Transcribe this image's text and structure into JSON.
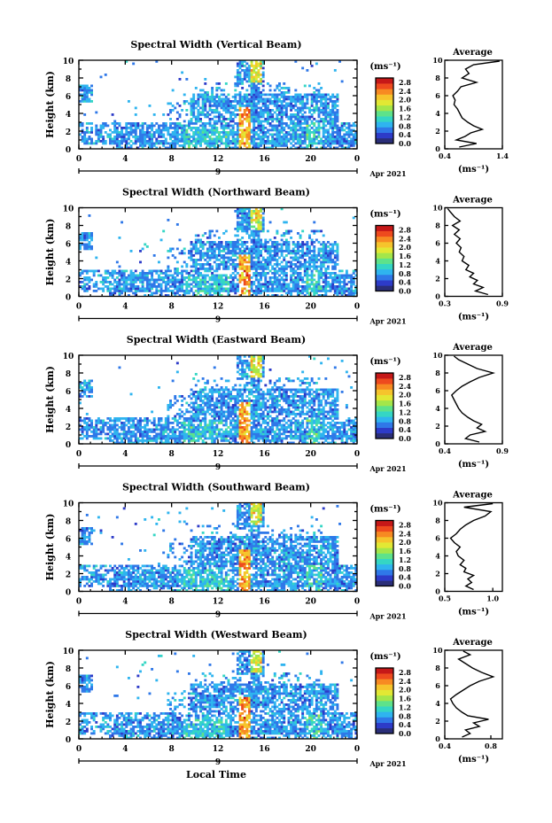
{
  "figure": {
    "x_axis_title": "Local Time",
    "date_label": "Apr 2021",
    "date_marker": "9",
    "y_axis_title": "Height (km)",
    "colorbar_unit": "(ms⁻¹)",
    "avg_title": "Average",
    "avg_unit": "(ms⁻¹)"
  },
  "colors": {
    "colormap": [
      "#2a2e78",
      "#2d3bc8",
      "#2f78e8",
      "#2fb4ef",
      "#35d6c4",
      "#5ee28a",
      "#a4e64a",
      "#e2e834",
      "#f6c42c",
      "#f78a22",
      "#ee4a1e",
      "#c61818"
    ],
    "axis": "#000000",
    "background": "#ffffff"
  },
  "chart_data": [
    {
      "type": "heatmap",
      "title": "Spectral Width (Vertical Beam)",
      "xlabel": "Local Time",
      "ylabel": "Height (km)",
      "xlim": [
        0,
        24
      ],
      "ylim": [
        0,
        10
      ],
      "xticks": [
        "0",
        "4",
        "8",
        "12",
        "16",
        "20",
        "0"
      ],
      "yticks": [
        "0",
        "2",
        "4",
        "6",
        "8",
        "10"
      ],
      "colorbar": {
        "unit": "(ms⁻¹)",
        "range": [
          0,
          3.0
        ],
        "ticks": [
          "0.0",
          "0.4",
          "0.8",
          "1.2",
          "1.6",
          "2.0",
          "2.4",
          "2.8"
        ]
      },
      "average_profile": {
        "title": "Average",
        "xlabel": "(ms⁻¹)",
        "xlim": [
          0.4,
          1.4
        ],
        "xticks": [
          "0.4",
          "1.4"
        ],
        "yticks": [
          "0",
          "2",
          "4",
          "6",
          "8",
          "10"
        ],
        "height_km": [
          0.2,
          0.6,
          1.0,
          1.4,
          1.8,
          2.2,
          2.6,
          3.0,
          3.5,
          4.0,
          4.5,
          5.0,
          5.5,
          6.0,
          6.5,
          7.0,
          7.5,
          8.0,
          8.5,
          9.0,
          9.5,
          9.9
        ],
        "value": [
          0.65,
          0.95,
          0.6,
          0.75,
          0.85,
          1.05,
          0.9,
          0.8,
          0.7,
          0.66,
          0.62,
          0.56,
          0.58,
          0.54,
          0.62,
          0.68,
          0.95,
          0.7,
          0.82,
          0.76,
          0.9,
          1.35
        ]
      }
    },
    {
      "type": "heatmap",
      "title": "Spectral Width (Northward Beam)",
      "xlabel": "Local Time",
      "ylabel": "Height (km)",
      "xlim": [
        0,
        24
      ],
      "ylim": [
        0,
        10
      ],
      "xticks": [
        "0",
        "4",
        "8",
        "12",
        "16",
        "20",
        "0"
      ],
      "yticks": [
        "0",
        "2",
        "4",
        "6",
        "8",
        "10"
      ],
      "colorbar": {
        "unit": "(ms⁻¹)",
        "range": [
          0,
          3.0
        ],
        "ticks": [
          "0.0",
          "0.4",
          "0.8",
          "1.2",
          "1.6",
          "2.0",
          "2.4",
          "2.8"
        ]
      },
      "average_profile": {
        "title": "Average",
        "xlabel": "(ms⁻¹)",
        "xlim": [
          0.3,
          0.9
        ],
        "xticks": [
          "0.3",
          "0.9"
        ],
        "yticks": [
          "0",
          "2",
          "4",
          "6",
          "8",
          "10"
        ],
        "height_km": [
          0.2,
          0.6,
          1.0,
          1.4,
          1.8,
          2.2,
          2.6,
          3.0,
          3.5,
          4.0,
          4.5,
          5.0,
          5.5,
          6.0,
          6.5,
          7.0,
          7.5,
          8.0,
          8.5,
          9.0,
          9.5,
          9.9
        ],
        "value": [
          0.75,
          0.62,
          0.7,
          0.6,
          0.64,
          0.56,
          0.6,
          0.52,
          0.55,
          0.48,
          0.5,
          0.45,
          0.47,
          0.42,
          0.46,
          0.4,
          0.45,
          0.38,
          0.46,
          0.4,
          0.36,
          0.33
        ]
      }
    },
    {
      "type": "heatmap",
      "title": "Spectral Width (Eastward Beam)",
      "xlabel": "Local Time",
      "ylabel": "Height (km)",
      "xlim": [
        0,
        24
      ],
      "ylim": [
        0,
        10
      ],
      "xticks": [
        "0",
        "4",
        "8",
        "12",
        "16",
        "20",
        "0"
      ],
      "yticks": [
        "0",
        "2",
        "4",
        "6",
        "8",
        "10"
      ],
      "colorbar": {
        "unit": "(ms⁻¹)",
        "range": [
          0,
          3.0
        ],
        "ticks": [
          "0.0",
          "0.4",
          "0.8",
          "1.2",
          "1.6",
          "2.0",
          "2.4",
          "2.8"
        ]
      },
      "average_profile": {
        "title": "Average",
        "xlabel": "(ms⁻¹)",
        "xlim": [
          0.4,
          0.9
        ],
        "xticks": [
          "0.4",
          "0.9"
        ],
        "yticks": [
          "0",
          "2",
          "4",
          "6",
          "8",
          "10"
        ],
        "height_km": [
          0.2,
          0.6,
          1.0,
          1.4,
          1.8,
          2.2,
          2.6,
          3.0,
          3.5,
          4.0,
          4.5,
          5.0,
          5.5,
          6.0,
          6.5,
          7.0,
          7.5,
          8.0,
          8.5,
          9.0,
          9.5,
          9.9
        ],
        "value": [
          0.7,
          0.58,
          0.62,
          0.75,
          0.68,
          0.72,
          0.65,
          0.6,
          0.55,
          0.52,
          0.5,
          0.48,
          0.46,
          0.5,
          0.55,
          0.62,
          0.7,
          0.82,
          0.68,
          0.6,
          0.52,
          0.48
        ]
      }
    },
    {
      "type": "heatmap",
      "title": "Spectral Width (Southward Beam)",
      "xlabel": "Local Time",
      "ylabel": "Height (km)",
      "xlim": [
        0,
        24
      ],
      "ylim": [
        0,
        10
      ],
      "xticks": [
        "0",
        "4",
        "8",
        "12",
        "16",
        "20",
        "0"
      ],
      "yticks": [
        "0",
        "2",
        "4",
        "6",
        "8",
        "10"
      ],
      "colorbar": {
        "unit": "(ms⁻¹)",
        "range": [
          0,
          3.0
        ],
        "ticks": [
          "0.0",
          "0.4",
          "0.8",
          "1.2",
          "1.6",
          "2.0",
          "2.4",
          "2.8"
        ]
      },
      "average_profile": {
        "title": "Average",
        "xlabel": "(ms⁻¹)",
        "xlim": [
          0.5,
          1.1
        ],
        "xticks": [
          "0.5",
          "1.0"
        ],
        "yticks": [
          "0",
          "2",
          "4",
          "6",
          "8",
          "10"
        ],
        "height_km": [
          0.2,
          0.6,
          1.0,
          1.4,
          1.8,
          2.2,
          2.6,
          3.0,
          3.5,
          4.0,
          4.5,
          5.0,
          5.5,
          6.0,
          6.5,
          7.0,
          7.5,
          8.0,
          8.5,
          9.0,
          9.5,
          9.9
        ],
        "value": [
          0.8,
          0.72,
          0.78,
          0.74,
          0.8,
          0.7,
          0.72,
          0.66,
          0.7,
          0.64,
          0.62,
          0.66,
          0.6,
          0.56,
          0.62,
          0.66,
          0.72,
          0.8,
          0.92,
          0.98,
          0.7,
          1.0
        ]
      }
    },
    {
      "type": "heatmap",
      "title": "Spectral Width (Westward Beam)",
      "xlabel": "Local Time",
      "ylabel": "Height (km)",
      "xlim": [
        0,
        24
      ],
      "ylim": [
        0,
        10
      ],
      "xticks": [
        "0",
        "4",
        "8",
        "12",
        "16",
        "20",
        "0"
      ],
      "yticks": [
        "0",
        "2",
        "4",
        "6",
        "8",
        "10"
      ],
      "colorbar": {
        "unit": "(ms⁻¹)",
        "range": [
          0,
          3.0
        ],
        "ticks": [
          "0.0",
          "0.4",
          "0.8",
          "1.2",
          "1.6",
          "2.0",
          "2.4",
          "2.8"
        ]
      },
      "average_profile": {
        "title": "Average",
        "xlabel": "(ms⁻¹)",
        "xlim": [
          0.4,
          0.9
        ],
        "xticks": [
          "0.4",
          "0.8"
        ],
        "yticks": [
          "0",
          "2",
          "4",
          "6",
          "8",
          "10"
        ],
        "height_km": [
          0.2,
          0.6,
          1.0,
          1.4,
          1.8,
          2.2,
          2.6,
          3.0,
          3.5,
          4.0,
          4.5,
          5.0,
          5.5,
          6.0,
          6.5,
          7.0,
          7.5,
          8.0,
          8.5,
          9.0,
          9.5,
          9.9
        ],
        "value": [
          0.55,
          0.62,
          0.58,
          0.7,
          0.65,
          0.78,
          0.6,
          0.55,
          0.5,
          0.47,
          0.45,
          0.5,
          0.56,
          0.62,
          0.7,
          0.82,
          0.72,
          0.64,
          0.58,
          0.52,
          0.62,
          0.56
        ]
      }
    }
  ]
}
